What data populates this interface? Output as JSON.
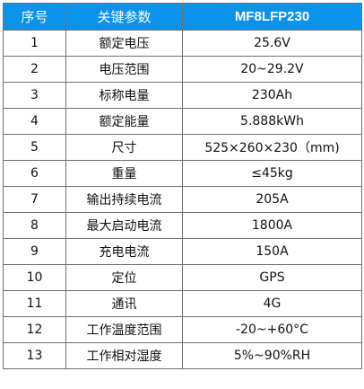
{
  "header": {
    "index": "序号",
    "param": "关键参数",
    "model": "MF8LFP230"
  },
  "rows": [
    {
      "index": "1",
      "param": "额定电压",
      "value": "25.6V"
    },
    {
      "index": "2",
      "param": "电压范围",
      "value": "20~29.2V"
    },
    {
      "index": "3",
      "param": "标称电量",
      "value": "230Ah"
    },
    {
      "index": "4",
      "param": "额定能量",
      "value": "5.888kWh"
    },
    {
      "index": "5",
      "param": "尺寸",
      "value": "525×260×230（mm)"
    },
    {
      "index": "6",
      "param": "重量",
      "value": "≤45kg"
    },
    {
      "index": "7",
      "param": "输出持续电流",
      "value": "205A"
    },
    {
      "index": "8",
      "param": "最大启动电流",
      "value": "1800A"
    },
    {
      "index": "9",
      "param": "充电电流",
      "value": "150A"
    },
    {
      "index": "10",
      "param": "定位",
      "value": "GPS"
    },
    {
      "index": "11",
      "param": "通讯",
      "value": "4G"
    },
    {
      "index": "12",
      "param": "工作温度范围",
      "value": "-20~+60°C"
    },
    {
      "index": "13",
      "param": "工作相对湿度",
      "value": "5%~90%RH"
    }
  ],
  "colors": {
    "header_bg": "#0b92ea",
    "header_text": "#ffffff",
    "border": "#6f6f6f"
  }
}
